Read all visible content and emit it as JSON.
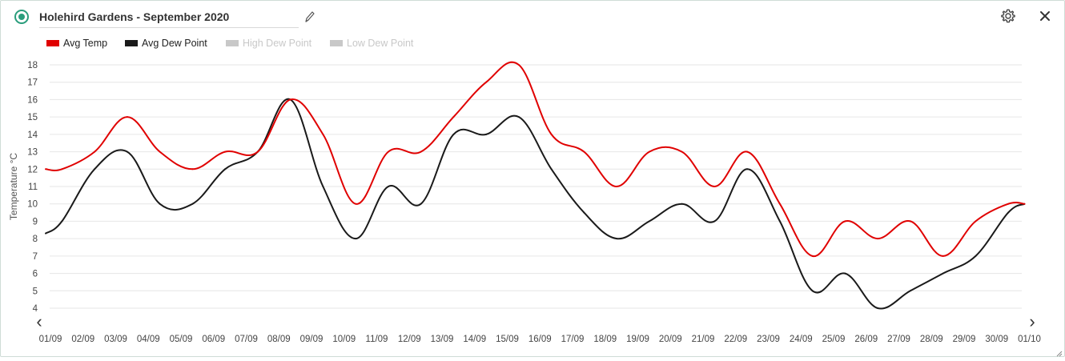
{
  "header": {
    "title": "Holehird Gardens - September 2020",
    "icons": [
      "status-radio-icon",
      "pencil-icon",
      "gear-icon",
      "close-icon"
    ]
  },
  "colors": {
    "accent": "#2a9d7c",
    "avg_temp": "#e00000",
    "avg_dew": "#1a1a1a",
    "disabled": "#c8c8c8"
  },
  "legend": [
    {
      "label": "Avg Temp",
      "color": "#e00000",
      "enabled": true
    },
    {
      "label": "Avg Dew Point",
      "color": "#1a1a1a",
      "enabled": true
    },
    {
      "label": "High Dew Point",
      "color": "#c8c8c8",
      "enabled": false
    },
    {
      "label": "Low Dew Point",
      "color": "#c8c8c8",
      "enabled": false
    }
  ],
  "navigation": {
    "prev": "‹",
    "next": "›"
  },
  "chart_data": {
    "type": "line",
    "title": "",
    "xlabel": "",
    "ylabel": "Temperature °C",
    "ylim": [
      4,
      18
    ],
    "yticks": [
      4,
      5,
      6,
      7,
      8,
      9,
      10,
      11,
      12,
      13,
      14,
      15,
      16,
      17,
      18
    ],
    "grid": true,
    "legend_position": "top-left",
    "categories": [
      "01/09",
      "02/09",
      "03/09",
      "04/09",
      "05/09",
      "06/09",
      "07/09",
      "08/09",
      "09/09",
      "10/09",
      "11/09",
      "12/09",
      "13/09",
      "14/09",
      "15/09",
      "16/09",
      "17/09",
      "18/09",
      "19/09",
      "20/09",
      "21/09",
      "22/09",
      "23/09",
      "24/09",
      "25/09",
      "26/09",
      "27/09",
      "28/09",
      "29/09",
      "30/09",
      "01/10"
    ],
    "series": [
      {
        "name": "Avg Temp",
        "color": "#e00000",
        "x": [
          0.0,
          0.5,
          1.5,
          2.5,
          3.5,
          4.5,
          5.5,
          6.5,
          7.5,
          8.5,
          9.5,
          10.5,
          11.5,
          12.5,
          13.5,
          14.5,
          15.5,
          16.5,
          17.5,
          18.5,
          19.5,
          20.5,
          21.5,
          22.5,
          23.5,
          24.5,
          25.5,
          26.5,
          27.5,
          28.5,
          29.5,
          30.0
        ],
        "values": [
          12,
          12,
          13,
          15,
          13,
          12,
          13,
          13,
          16,
          14,
          10,
          13,
          13,
          15,
          17,
          18,
          14,
          13,
          11,
          13,
          13,
          11,
          13,
          10,
          7,
          9,
          8,
          9,
          7,
          9,
          10,
          10
        ]
      },
      {
        "name": "Avg Dew Point",
        "color": "#1a1a1a",
        "x": [
          0.0,
          0.5,
          1.5,
          2.5,
          3.5,
          4.5,
          5.5,
          6.5,
          7.5,
          8.5,
          9.5,
          10.5,
          11.5,
          12.5,
          13.5,
          14.5,
          15.5,
          16.5,
          17.5,
          18.5,
          19.5,
          20.5,
          21.5,
          22.5,
          23.5,
          24.5,
          25.5,
          26.5,
          27.5,
          28.5,
          29.5,
          30.0
        ],
        "values": [
          8.3,
          9,
          12,
          13,
          10,
          10,
          12,
          13,
          16,
          11,
          8,
          11,
          10,
          14,
          14,
          15,
          12,
          9.5,
          8,
          9,
          10,
          9,
          12,
          9,
          5,
          6,
          4,
          5,
          6,
          7,
          9.5,
          10
        ]
      }
    ]
  }
}
